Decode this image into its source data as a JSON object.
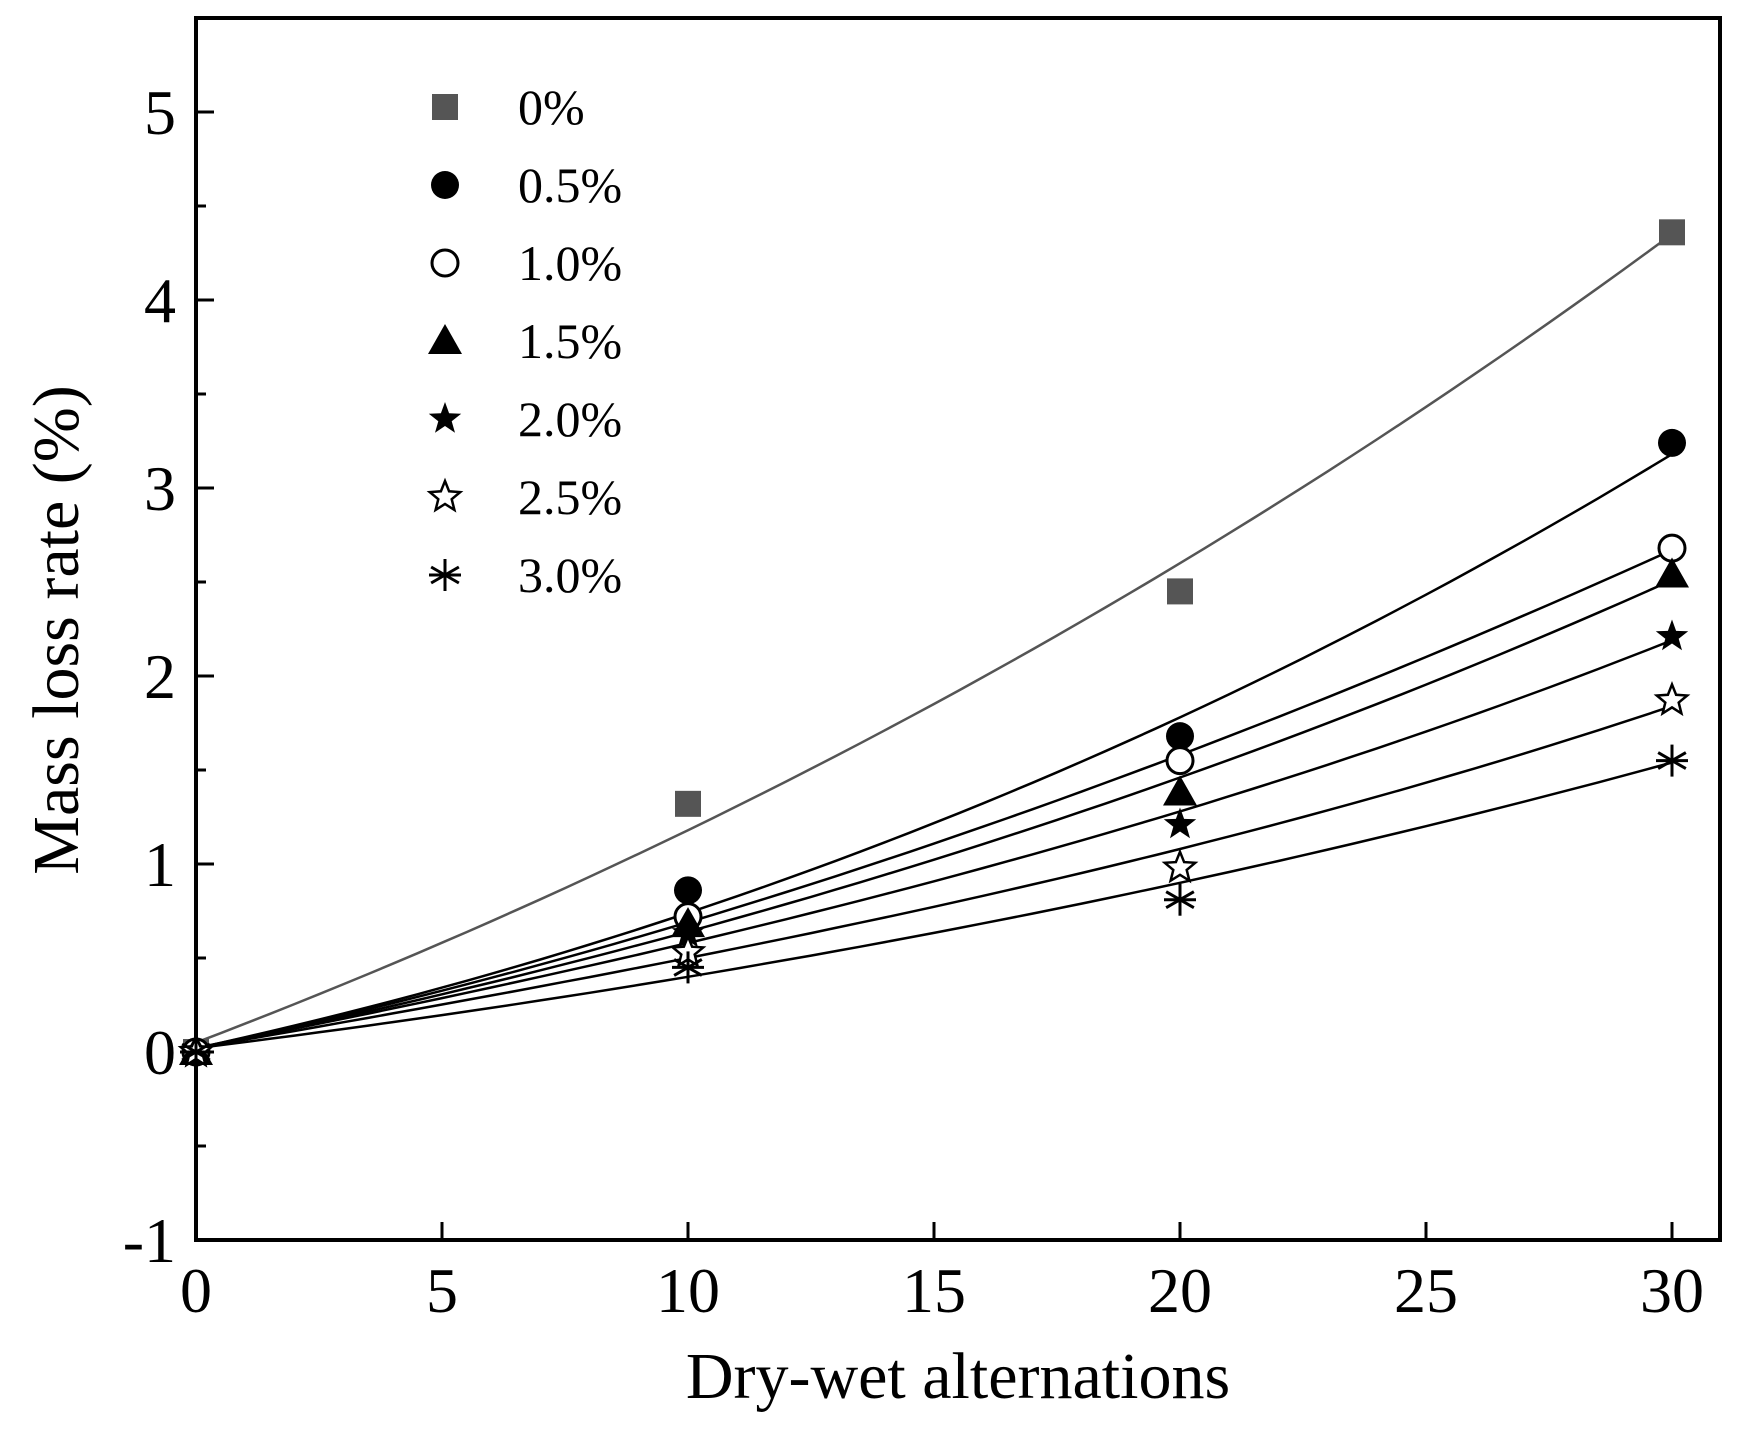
{
  "chart_data": {
    "type": "scatter",
    "title": "",
    "xlabel": "Dry-wet alternations",
    "ylabel": "Mass loss rate (%)",
    "xlim": [
      0,
      31
    ],
    "ylim": [
      -1,
      5.5
    ],
    "xticks": [
      0,
      5,
      10,
      15,
      20,
      25,
      30
    ],
    "xtick_labels": [
      "0",
      "5",
      "10",
      "15",
      "20",
      "25",
      "30"
    ],
    "yticks": [
      -1,
      0,
      1,
      2,
      3,
      4,
      5
    ],
    "ytick_labels": [
      "-1",
      "0",
      "1",
      "2",
      "3",
      "4",
      "5"
    ],
    "grid": false,
    "legend_position": "top-left",
    "series": [
      {
        "name": "0%",
        "marker": "square",
        "color": "#555555",
        "x": [
          0,
          10,
          20,
          30
        ],
        "y": [
          0.0,
          1.32,
          2.45,
          4.36
        ],
        "fit": [
          0.05,
          1.18,
          2.6,
          4.35
        ]
      },
      {
        "name": "0.5%",
        "marker": "circle-filled",
        "color": "#000000",
        "x": [
          0,
          10,
          20,
          30
        ],
        "y": [
          0.0,
          0.86,
          1.68,
          3.24
        ],
        "fit": [
          0.02,
          0.74,
          1.78,
          3.18
        ]
      },
      {
        "name": "1.0%",
        "marker": "circle-open",
        "color": "#000000",
        "x": [
          0,
          10,
          20,
          30
        ],
        "y": [
          0.0,
          0.72,
          1.55,
          2.68
        ],
        "fit": [
          0.02,
          0.69,
          1.58,
          2.67
        ]
      },
      {
        "name": "1.5%",
        "marker": "triangle",
        "color": "#000000",
        "x": [
          0,
          10,
          20,
          30
        ],
        "y": [
          0.0,
          0.68,
          1.38,
          2.54
        ],
        "fit": [
          0.02,
          0.64,
          1.46,
          2.51
        ]
      },
      {
        "name": "2.0%",
        "marker": "star-filled",
        "color": "#000000",
        "x": [
          0,
          10,
          20,
          30
        ],
        "y": [
          0.0,
          0.63,
          1.21,
          2.21
        ],
        "fit": [
          0.02,
          0.58,
          1.28,
          2.19
        ]
      },
      {
        "name": "2.5%",
        "marker": "star-open",
        "color": "#000000",
        "x": [
          0,
          10,
          20,
          30
        ],
        "y": [
          0.0,
          0.53,
          0.98,
          1.87
        ],
        "fit": [
          0.02,
          0.5,
          1.08,
          1.84
        ]
      },
      {
        "name": "3.0%",
        "marker": "asterisk",
        "color": "#000000",
        "x": [
          0,
          10,
          20,
          30
        ],
        "y": [
          0.0,
          0.45,
          0.81,
          1.55
        ],
        "fit": [
          0.02,
          0.4,
          0.9,
          1.54
        ]
      }
    ]
  }
}
